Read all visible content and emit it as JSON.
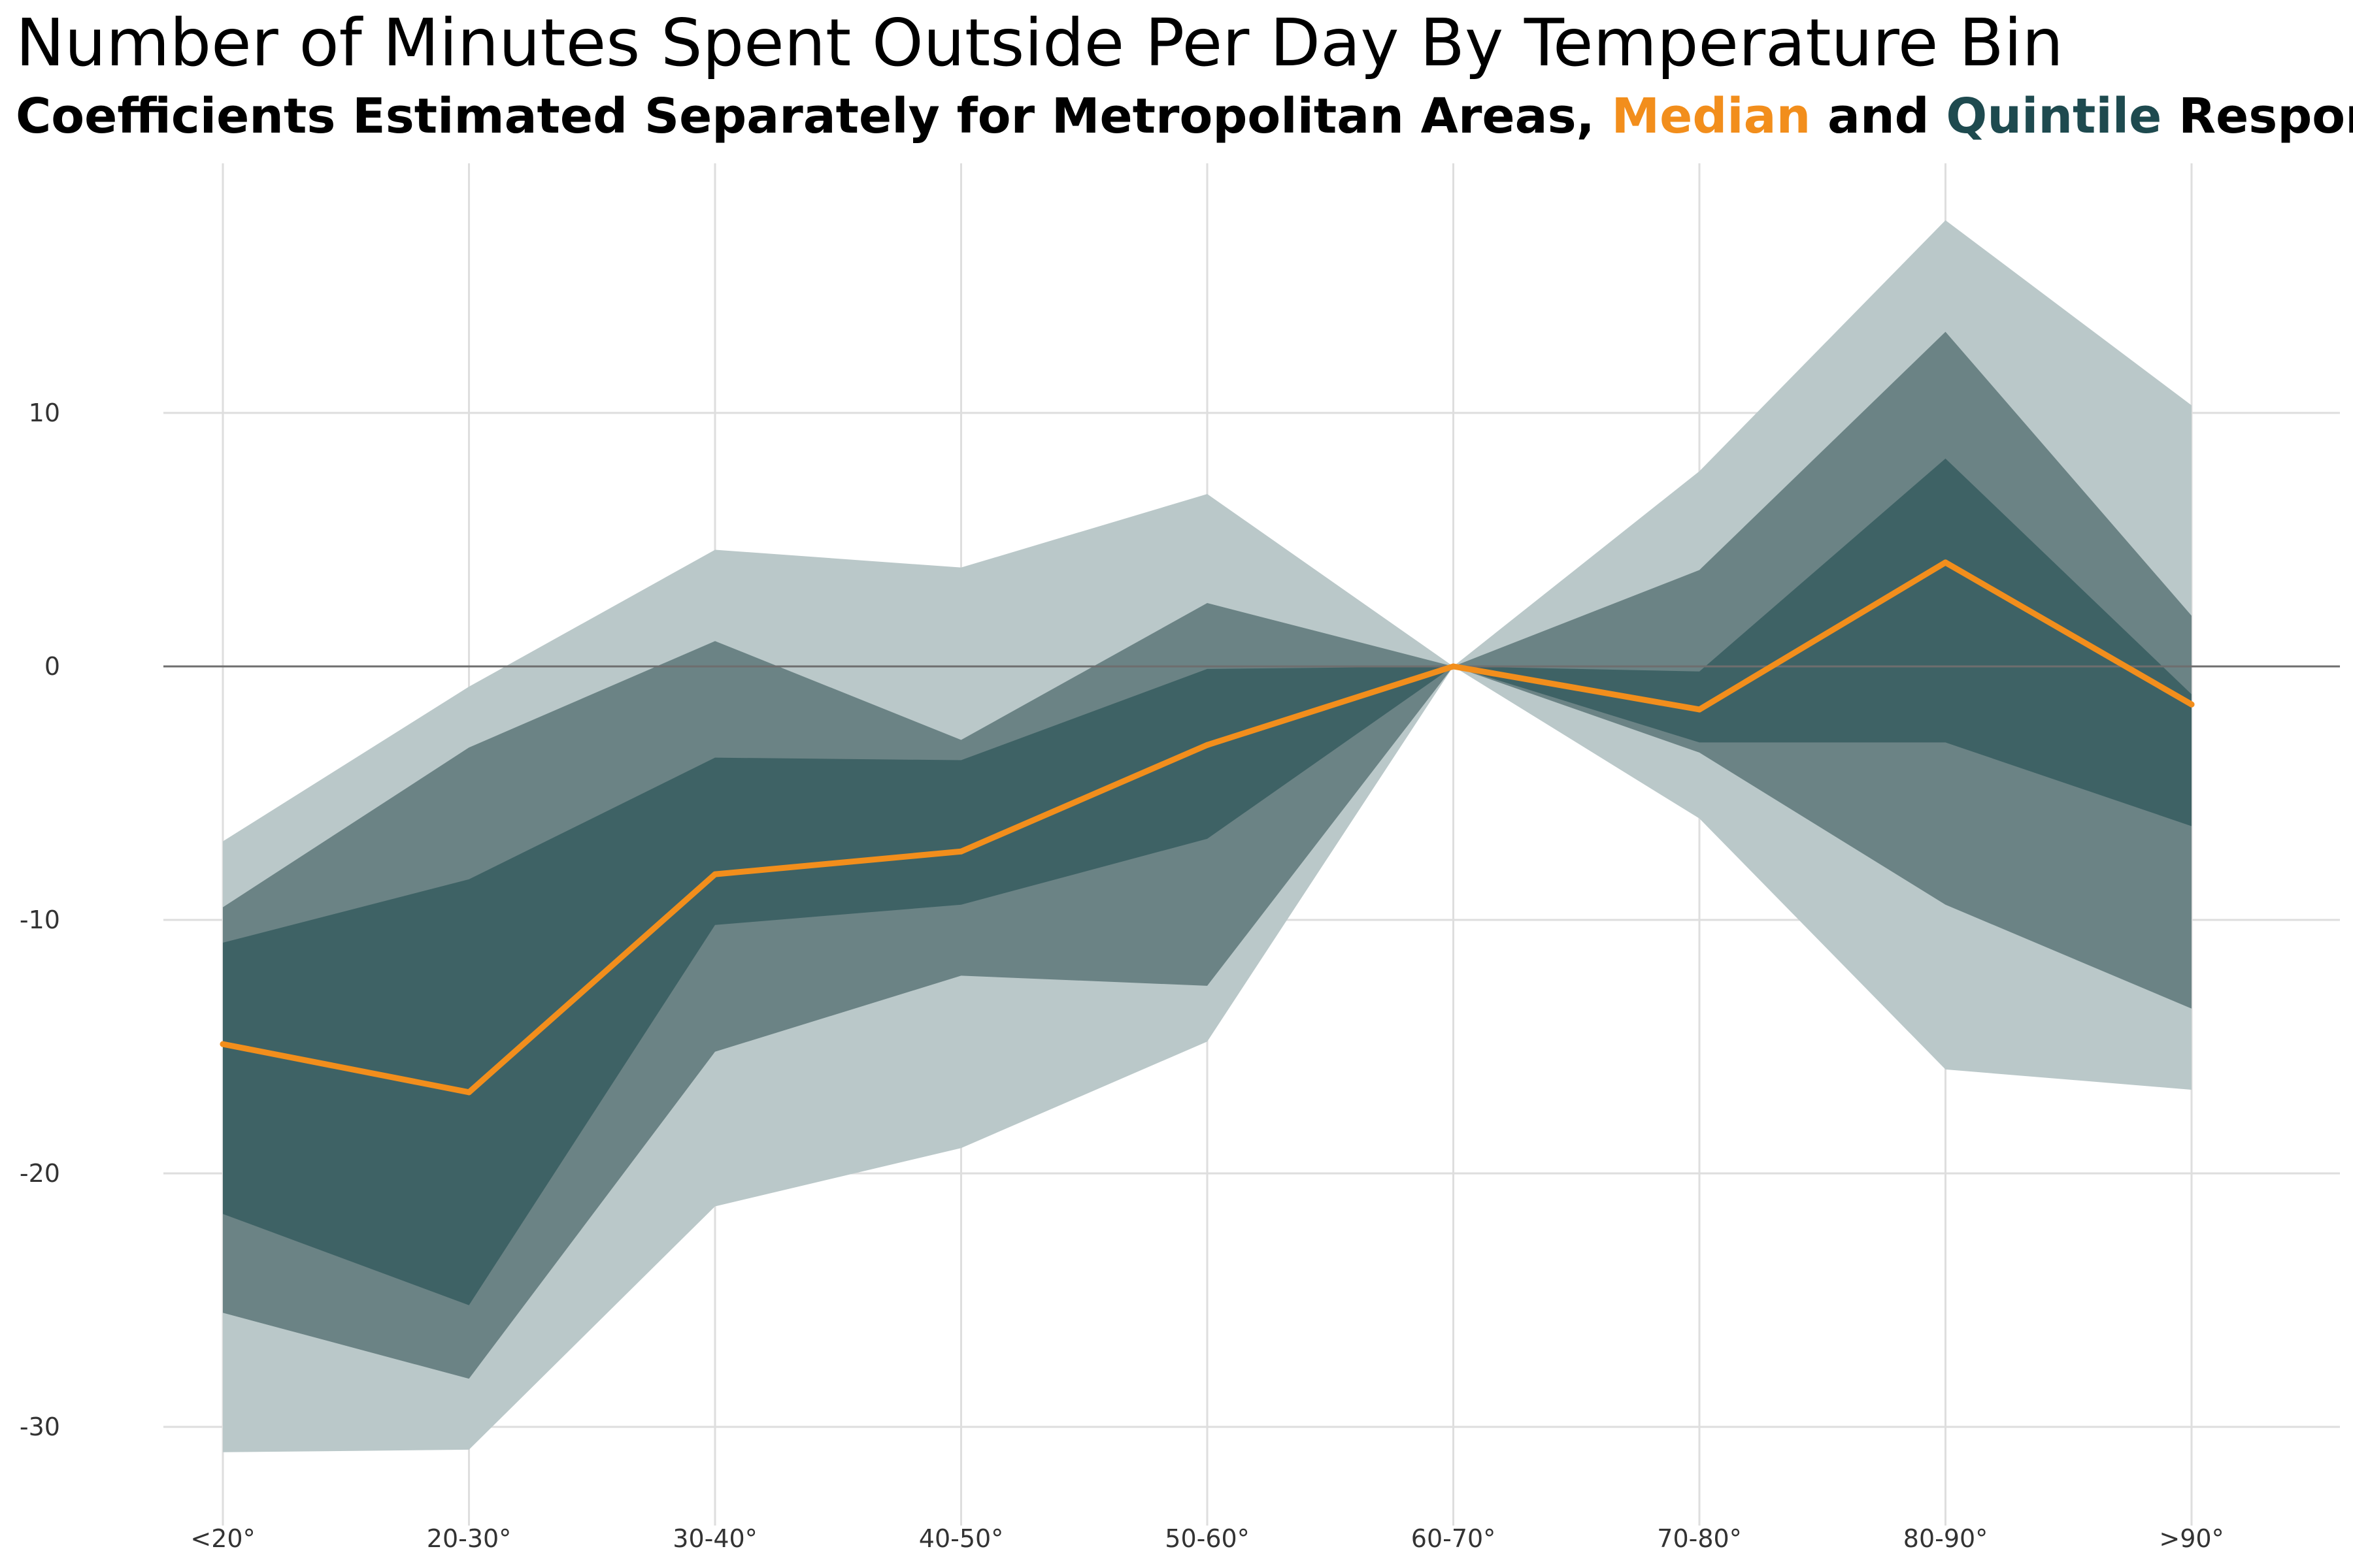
{
  "chart_data": {
    "type": "area",
    "title": "Number of Minutes Spent Outside Per Day By Temperature Bin",
    "subtitle": {
      "prefix": "Coefficients Estimated Separately for Metropolitan Areas, ",
      "median_word": "Median",
      "joiner": " and ",
      "quintile_word": "Quintile",
      "suffix": " Responses"
    },
    "xlabel": "",
    "ylabel": "",
    "categories": [
      "<20°",
      "20-30°",
      "30-40°",
      "40-50°",
      "50-60°",
      "60-70°",
      "70-80°",
      "80-90°",
      ">90°"
    ],
    "ylim": [
      -31.5,
      19.5
    ],
    "yticks": [
      10,
      0,
      -10,
      -20,
      -30
    ],
    "ytick_labels": [
      "10",
      "0",
      "-10",
      "-20",
      "-30"
    ],
    "grid": true,
    "reference_line": 0,
    "bands": [
      {
        "level": "outer",
        "color": "#bac8c9",
        "upper": [
          -6.9,
          -0.8,
          4.6,
          3.9,
          6.8,
          0,
          7.7,
          17.6,
          10.3
        ],
        "lower": [
          -31.0,
          -30.9,
          -21.3,
          -19.0,
          -14.8,
          0,
          -6.0,
          -15.9,
          -16.7
        ]
      },
      {
        "level": "middle",
        "color": "#6b8385",
        "upper": [
          -9.5,
          -3.2,
          1.0,
          -2.9,
          2.5,
          0,
          3.8,
          13.2,
          2.0
        ],
        "lower": [
          -25.5,
          -28.1,
          -15.2,
          -12.2,
          -12.6,
          0,
          -3.4,
          -9.4,
          -13.5
        ]
      },
      {
        "level": "inner",
        "color": "#3e6265",
        "upper": [
          -10.9,
          -8.4,
          -3.6,
          -3.7,
          -0.1,
          0,
          -0.2,
          8.2,
          -1.1
        ],
        "lower": [
          -21.6,
          -25.2,
          -10.2,
          -9.4,
          -6.8,
          0,
          -3.0,
          -3.0,
          -6.3
        ]
      }
    ],
    "series": [
      {
        "name": "Median",
        "color": "#f28e1c",
        "values": [
          -14.9,
          -16.8,
          -8.2,
          -7.3,
          -3.1,
          0,
          -1.7,
          4.1,
          -1.5
        ]
      }
    ],
    "colors": {
      "median": "#f28e1c",
      "quintile": "#1e4a4f",
      "grid": "#dedede",
      "zero_line": "#6e6e6e"
    }
  }
}
